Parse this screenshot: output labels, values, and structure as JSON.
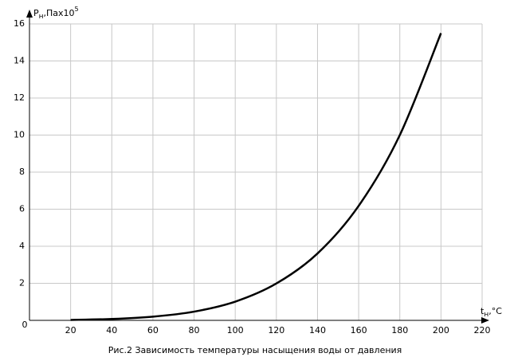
{
  "chart_data": {
    "type": "line",
    "title": "Рис.2 Зависимость температуры насыщения воды от давления",
    "ylabel": {
      "base": "P",
      "sub": "н",
      "text": ",Паx10",
      "sup": "5"
    },
    "xlabel": {
      "base": "t",
      "sub": "н",
      "text": ",°C"
    },
    "x": [
      20,
      40,
      60,
      80,
      100,
      120,
      140,
      160,
      180,
      200
    ],
    "series": [
      {
        "color": "#000000",
        "values": [
          0.023,
          0.074,
          0.2,
          0.47,
          1.01,
          1.99,
          3.61,
          6.18,
          10.0,
          15.5
        ]
      }
    ],
    "xlim": [
      0,
      220
    ],
    "xticks": [
      0,
      20,
      40,
      60,
      80,
      100,
      120,
      140,
      160,
      180,
      200,
      220
    ],
    "ylim": [
      0,
      16
    ],
    "yticks": [
      2,
      4,
      6,
      8,
      10,
      12,
      14,
      16
    ],
    "grid": true
  }
}
